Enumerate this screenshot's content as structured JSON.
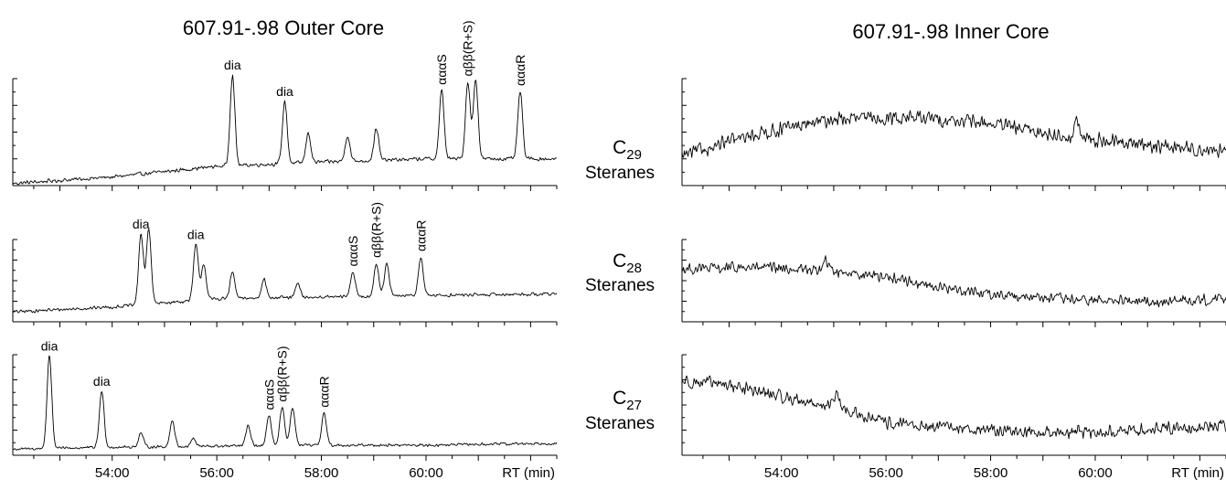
{
  "figure": {
    "left_title": "607.91-.98 Outer Core",
    "right_title": "607.91-.98 Inner Core",
    "x_unit_label": "RT (min)",
    "line_color": "#000000",
    "background": "#ffffff"
  },
  "chart_data": [
    {
      "type": "line",
      "panel": "outer-c29",
      "title": "607.91-.98 Outer Core",
      "series_label": "C29 Steranes",
      "xlabel": "RT (min)",
      "xlim": [
        52.1,
        62.5
      ],
      "xticks": [
        "54:00",
        "56:00",
        "58:00",
        "60:00"
      ],
      "ylim": [
        0,
        1
      ],
      "baseline": [
        [
          52.1,
          0.02
        ],
        [
          54.0,
          0.08
        ],
        [
          56.0,
          0.18
        ],
        [
          58.0,
          0.22
        ],
        [
          60.0,
          0.25
        ],
        [
          62.5,
          0.25
        ]
      ],
      "noise": 0.022,
      "peaks": [
        {
          "rt": 56.3,
          "height": 0.85,
          "label": "dia"
        },
        {
          "rt": 57.3,
          "height": 0.58,
          "label": "dia"
        },
        {
          "rt": 57.75,
          "height": 0.28,
          "label": ""
        },
        {
          "rt": 58.5,
          "height": 0.24,
          "label": ""
        },
        {
          "rt": 59.05,
          "height": 0.3,
          "label": ""
        },
        {
          "rt": 60.3,
          "height": 0.64,
          "label": "αααS"
        },
        {
          "rt": 60.8,
          "height": 0.72,
          "label": "αββ(R+S)"
        },
        {
          "rt": 60.95,
          "height": 0.74,
          "label": ""
        },
        {
          "rt": 61.8,
          "height": 0.63,
          "label": "αααR"
        }
      ]
    },
    {
      "type": "line",
      "panel": "outer-c28",
      "series_label": "C28 Steranes",
      "xlim": [
        52.1,
        62.5
      ],
      "xticks": [
        "54:00",
        "56:00",
        "58:00",
        "60:00"
      ],
      "ylim": [
        0,
        1
      ],
      "baseline": [
        [
          52.1,
          0.12
        ],
        [
          54.0,
          0.18
        ],
        [
          56.0,
          0.28
        ],
        [
          58.0,
          0.3
        ],
        [
          60.0,
          0.32
        ],
        [
          62.5,
          0.34
        ]
      ],
      "noise": 0.025,
      "peaks": [
        {
          "rt": 54.55,
          "height": 0.86,
          "label": "dia"
        },
        {
          "rt": 54.7,
          "height": 0.92,
          "label": ""
        },
        {
          "rt": 55.6,
          "height": 0.68,
          "label": "dia"
        },
        {
          "rt": 55.75,
          "height": 0.44,
          "label": ""
        },
        {
          "rt": 56.3,
          "height": 0.32,
          "label": ""
        },
        {
          "rt": 56.9,
          "height": 0.24,
          "label": ""
        },
        {
          "rt": 57.55,
          "height": 0.17,
          "label": ""
        },
        {
          "rt": 58.6,
          "height": 0.3,
          "label": "αααS"
        },
        {
          "rt": 59.05,
          "height": 0.4,
          "label": "αββ(R+S)"
        },
        {
          "rt": 59.25,
          "height": 0.39,
          "label": ""
        },
        {
          "rt": 59.9,
          "height": 0.47,
          "label": "αααR"
        }
      ]
    },
    {
      "type": "line",
      "panel": "outer-c27",
      "series_label": "C27 Steranes",
      "xlim": [
        52.1,
        62.5
      ],
      "xticks": [
        "54:00",
        "56:00",
        "58:00",
        "60:00"
      ],
      "ylim": [
        0,
        1
      ],
      "baseline": [
        [
          52.1,
          0.06
        ],
        [
          54.0,
          0.08
        ],
        [
          56.0,
          0.09
        ],
        [
          58.0,
          0.1
        ],
        [
          60.0,
          0.1
        ],
        [
          62.5,
          0.12
        ]
      ],
      "noise": 0.017,
      "peaks": [
        {
          "rt": 52.8,
          "height": 0.92,
          "label": "dia"
        },
        {
          "rt": 53.8,
          "height": 0.56,
          "label": "dia"
        },
        {
          "rt": 54.55,
          "height": 0.14,
          "label": ""
        },
        {
          "rt": 55.15,
          "height": 0.26,
          "label": ""
        },
        {
          "rt": 55.55,
          "height": 0.08,
          "label": ""
        },
        {
          "rt": 56.6,
          "height": 0.2,
          "label": ""
        },
        {
          "rt": 57.0,
          "height": 0.3,
          "label": "αααS"
        },
        {
          "rt": 57.25,
          "height": 0.38,
          "label": "αββ(R+S)"
        },
        {
          "rt": 57.45,
          "height": 0.38,
          "label": ""
        },
        {
          "rt": 58.05,
          "height": 0.32,
          "label": "αααR"
        }
      ]
    },
    {
      "type": "line",
      "panel": "inner-c29",
      "title": "607.91-.98 Inner Core",
      "series_label": "C29 Steranes",
      "xlabel": "RT (min)",
      "xlim": [
        52.1,
        62.5
      ],
      "xticks": [
        "54:00",
        "56:00",
        "58:00",
        "60:00"
      ],
      "ylim": [
        0,
        1
      ],
      "baseline": [
        [
          52.1,
          0.28
        ],
        [
          53.5,
          0.48
        ],
        [
          55.0,
          0.62
        ],
        [
          56.5,
          0.64
        ],
        [
          58.0,
          0.58
        ],
        [
          59.5,
          0.45
        ],
        [
          61.0,
          0.38
        ],
        [
          62.5,
          0.32
        ]
      ],
      "noise": 0.08,
      "peaks": [
        {
          "rt": 59.65,
          "height": 0.16,
          "label": ""
        }
      ]
    },
    {
      "type": "line",
      "panel": "inner-c28",
      "series_label": "C28 Steranes",
      "xlim": [
        52.1,
        62.5
      ],
      "xticks": [
        "54:00",
        "56:00",
        "58:00",
        "60:00"
      ],
      "ylim": [
        0,
        1
      ],
      "baseline": [
        [
          52.1,
          0.64
        ],
        [
          53.5,
          0.66
        ],
        [
          55.0,
          0.62
        ],
        [
          56.0,
          0.55
        ],
        [
          57.0,
          0.42
        ],
        [
          58.0,
          0.34
        ],
        [
          59.5,
          0.27
        ],
        [
          61.0,
          0.24
        ],
        [
          62.5,
          0.28
        ]
      ],
      "noise": 0.08,
      "peaks": [
        {
          "rt": 54.85,
          "height": 0.12,
          "label": ""
        }
      ]
    },
    {
      "type": "line",
      "panel": "inner-c27",
      "series_label": "C27 Steranes",
      "xlim": [
        52.1,
        62.5
      ],
      "xticks": [
        "54:00",
        "56:00",
        "58:00",
        "60:00"
      ],
      "ylim": [
        0,
        1
      ],
      "baseline": [
        [
          52.1,
          0.74
        ],
        [
          53.0,
          0.7
        ],
        [
          54.0,
          0.58
        ],
        [
          55.0,
          0.48
        ],
        [
          56.0,
          0.32
        ],
        [
          57.0,
          0.28
        ],
        [
          58.5,
          0.24
        ],
        [
          60.0,
          0.22
        ],
        [
          61.0,
          0.26
        ],
        [
          62.5,
          0.3
        ]
      ],
      "noise": 0.075,
      "peaks": [
        {
          "rt": 55.05,
          "height": 0.14,
          "label": ""
        }
      ]
    }
  ],
  "row_labels": [
    {
      "prefix": "C",
      "sub": "29",
      "name": "Steranes"
    },
    {
      "prefix": "C",
      "sub": "28",
      "name": "Steranes"
    },
    {
      "prefix": "C",
      "sub": "27",
      "name": "Steranes"
    }
  ]
}
